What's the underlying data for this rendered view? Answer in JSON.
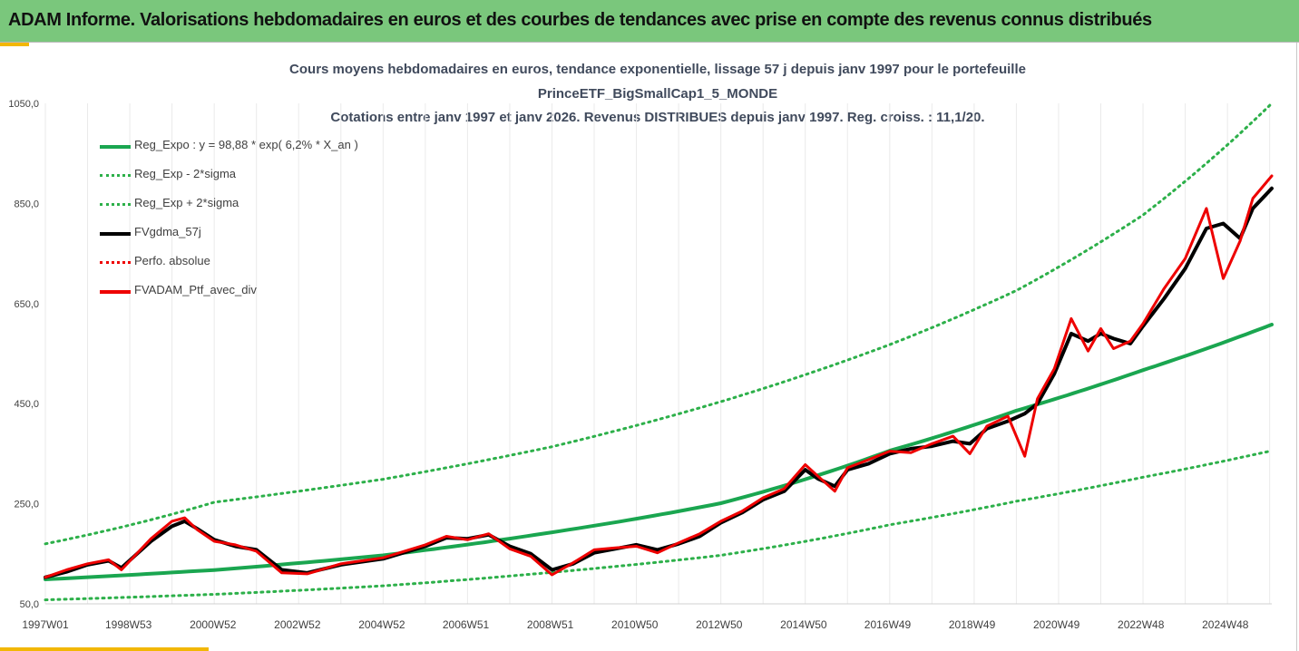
{
  "banner": {
    "title": "ADAM Informe. Valorisations hebdomadaires en euros et des courbes de tendances avec prise en compte des revenus connus distribués"
  },
  "colors": {
    "banner": "#7ac77c",
    "accent_corner": "#f2b705",
    "trend_green": "#1aa650",
    "dotted_green": "#2db04a",
    "mean_black": "#000000",
    "portfolio_red": "#ee0000"
  },
  "chart_data": {
    "type": "line",
    "title_lines": [
      "Cours moyens hebdomadaires  en euros, tendance exponentielle, lissage 57 j depuis janv 1997 pour le portefeuille",
      "PrinceETF_BigSmallCap1_5_MONDE",
      "Cotations entre janv 1997 et janv 2026. Revenus DISTRIBUES depuis janv 1997. Reg. croiss. : 11,1/20."
    ],
    "ylim": [
      50,
      1050
    ],
    "y_ticks": [
      "50,0",
      "250,0",
      "450,0",
      "650,0",
      "850,0",
      "1050,0"
    ],
    "y_tick_values": [
      50,
      250,
      450,
      650,
      850,
      1050
    ],
    "x_range": [
      1997.0,
      2026.05
    ],
    "x_tick_labels": [
      "1997W01",
      "1998W53",
      "2000W52",
      "2002W52",
      "2004W52",
      "2006W51",
      "2008W51",
      "2010W50",
      "2012W50",
      "2014W50",
      "2016W49",
      "2018W49",
      "2020W49",
      "2022W48",
      "2024W48"
    ],
    "x_tick_years": [
      1997.0,
      1998.97,
      2000.97,
      2002.97,
      2004.97,
      2006.96,
      2008.96,
      2010.96,
      2012.96,
      2014.96,
      2016.95,
      2018.95,
      2020.95,
      2022.95,
      2024.95
    ],
    "grid": true,
    "legend_position": "top-left",
    "legend": [
      {
        "label": "Reg_Expo : y = 98,88 * exp( 6,2% *  X_an )",
        "style": "solid",
        "color": "#1aa650"
      },
      {
        "label": "Reg_Exp - 2*sigma",
        "style": "dotted",
        "color": "#2db04a"
      },
      {
        "label": "Reg_Exp + 2*sigma",
        "style": "dotted",
        "color": "#2db04a"
      },
      {
        "label": "FVgdma_57j",
        "style": "solid",
        "color": "#000000"
      },
      {
        "label": "Perfo. absolue",
        "style": "dotted",
        "color": "#ee0000"
      },
      {
        "label": "FVADAM_Ptf_avec_div",
        "style": "solid",
        "color": "#ee0000"
      }
    ],
    "series": [
      {
        "name": "Reg_Expo : y = 98,88 * exp( 6,2% *  X_an )",
        "x": [
          1997.0,
          2001.0,
          2005.0,
          2009.0,
          2013.0,
          2017.0,
          2020.0,
          2023.0,
          2026.05
        ],
        "y": [
          98.9,
          117.6,
          147,
          193,
          251,
          356,
          436,
          517,
          608
        ]
      },
      {
        "name": "Reg_Exp - 2*sigma",
        "x": [
          1997.0,
          2001.0,
          2005.0,
          2009.0,
          2013.0,
          2017.0,
          2020.0,
          2023.0,
          2026.05
        ],
        "y": [
          58,
          69,
          86,
          113,
          147,
          208,
          255,
          303,
          356
        ]
      },
      {
        "name": "Reg_Exp + 2*sigma",
        "x": [
          1997.0,
          2001.0,
          2005.0,
          2009.0,
          2013.0,
          2017.0,
          2020.0,
          2023.0,
          2026.05
        ],
        "y": [
          170,
          253,
          299,
          364,
          454,
          568,
          676,
          827,
          1050
        ]
      },
      {
        "name": "FVgdma_57j",
        "x": [
          1997.0,
          1997.5,
          1998.0,
          1998.5,
          1998.8,
          1999.5,
          2000.0,
          2000.3,
          2000.6,
          2001.0,
          2001.5,
          2002.0,
          2002.6,
          2003.2,
          2004.0,
          2005.0,
          2006.0,
          2006.5,
          2007.0,
          2007.5,
          2008.0,
          2008.5,
          2009.0,
          2009.5,
          2010.0,
          2010.5,
          2011.0,
          2011.5,
          2012.0,
          2012.5,
          2013.0,
          2013.5,
          2014.0,
          2014.5,
          2015.0,
          2015.3,
          2015.7,
          2016.0,
          2016.5,
          2017.0,
          2017.5,
          2018.0,
          2018.5,
          2018.9,
          2019.3,
          2019.8,
          2020.2,
          2020.5,
          2020.9,
          2021.3,
          2021.7,
          2022.0,
          2022.3,
          2022.7,
          2023.0,
          2023.5,
          2024.0,
          2024.5,
          2024.9,
          2025.3,
          2025.6,
          2026.05
        ],
        "y": [
          103,
          114,
          128,
          136,
          122,
          175,
          205,
          215,
          200,
          178,
          165,
          158,
          118,
          112,
          128,
          140,
          165,
          182,
          180,
          188,
          165,
          150,
          118,
          130,
          152,
          160,
          168,
          158,
          170,
          185,
          212,
          232,
          258,
          275,
          318,
          300,
          285,
          318,
          330,
          350,
          360,
          365,
          375,
          370,
          400,
          415,
          430,
          450,
          510,
          590,
          575,
          590,
          580,
          570,
          605,
          660,
          720,
          800,
          810,
          780,
          840,
          880
        ]
      },
      {
        "name": "FVADAM_Ptf_avec_div",
        "x": [
          1997.0,
          1997.5,
          1998.0,
          1998.5,
          1998.8,
          1999.5,
          2000.0,
          2000.3,
          2000.6,
          2001.0,
          2001.5,
          2002.0,
          2002.6,
          2003.2,
          2004.0,
          2005.0,
          2006.0,
          2006.5,
          2007.0,
          2007.5,
          2008.0,
          2008.5,
          2009.0,
          2009.5,
          2010.0,
          2010.5,
          2011.0,
          2011.5,
          2012.0,
          2012.5,
          2013.0,
          2013.5,
          2014.0,
          2014.5,
          2015.0,
          2015.3,
          2015.7,
          2016.0,
          2016.5,
          2017.0,
          2017.5,
          2018.0,
          2018.5,
          2018.9,
          2019.3,
          2019.8,
          2020.2,
          2020.5,
          2020.9,
          2021.3,
          2021.7,
          2022.0,
          2022.3,
          2022.7,
          2023.0,
          2023.5,
          2024.0,
          2024.5,
          2024.9,
          2025.3,
          2025.6,
          2026.05
        ],
        "y": [
          103,
          118,
          130,
          138,
          118,
          180,
          215,
          222,
          198,
          175,
          168,
          155,
          112,
          110,
          130,
          142,
          168,
          185,
          178,
          190,
          160,
          145,
          108,
          132,
          158,
          162,
          165,
          152,
          172,
          190,
          215,
          235,
          262,
          280,
          328,
          305,
          275,
          322,
          338,
          355,
          352,
          370,
          385,
          350,
          405,
          425,
          345,
          460,
          520,
          620,
          555,
          600,
          560,
          575,
          610,
          680,
          740,
          840,
          700,
          775,
          860,
          905
        ]
      }
    ]
  }
}
